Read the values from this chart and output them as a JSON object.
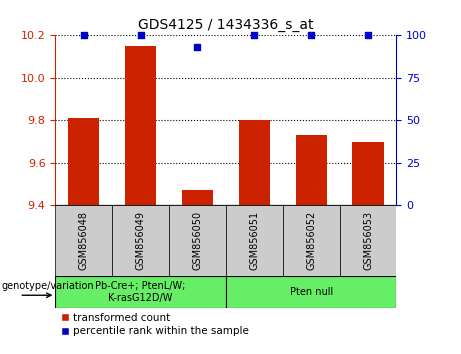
{
  "title": "GDS4125 / 1434336_s_at",
  "samples": [
    "GSM856048",
    "GSM856049",
    "GSM856050",
    "GSM856051",
    "GSM856052",
    "GSM856053"
  ],
  "red_values": [
    9.81,
    10.15,
    9.47,
    9.8,
    9.73,
    9.7
  ],
  "blue_values": [
    100,
    100,
    93,
    100,
    100,
    100
  ],
  "ylim_left": [
    9.4,
    10.2
  ],
  "ylim_right": [
    0,
    100
  ],
  "yticks_left": [
    9.4,
    9.6,
    9.8,
    10.0,
    10.2
  ],
  "yticks_right": [
    0,
    25,
    50,
    75,
    100
  ],
  "bar_color": "#cc2200",
  "dot_color": "#0000cc",
  "group1_label": "Pb-Cre+; PtenL/W;\nK-rasG12D/W",
  "group2_label": "Pten null",
  "group_box_color": "#66ee66",
  "sample_box_color": "#cccccc",
  "legend_red_label": "transformed count",
  "legend_blue_label": "percentile rank within the sample",
  "genotype_label": "genotype/variation"
}
